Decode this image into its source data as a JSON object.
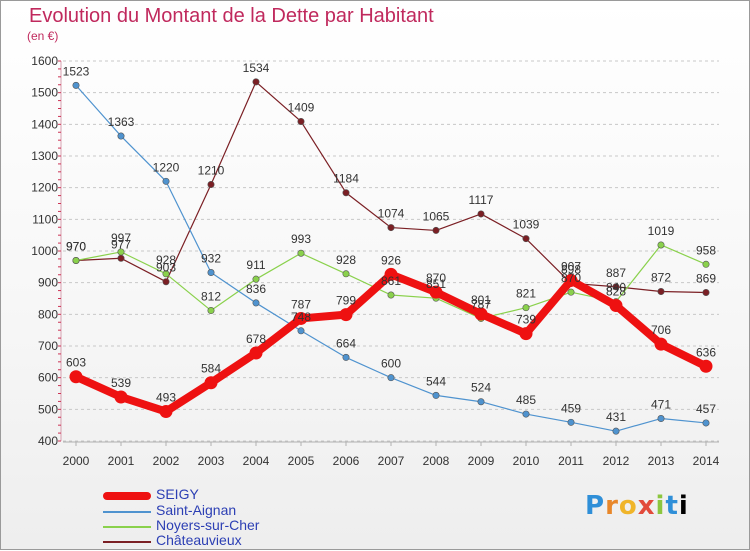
{
  "chart_data": {
    "type": "line",
    "title": "Evolution du Montant de la Dette par Habitant",
    "subtitle": "(en €)",
    "x": [
      "2000",
      "2001",
      "2002",
      "2003",
      "2004",
      "2005",
      "2006",
      "2007",
      "2008",
      "2009",
      "2010",
      "2011",
      "2012",
      "2013",
      "2014"
    ],
    "ylim": [
      400,
      1600
    ],
    "yticks": [
      400,
      500,
      600,
      700,
      800,
      900,
      1000,
      1100,
      1200,
      1300,
      1400,
      1500,
      1600
    ],
    "grid": "horizontal-dashed",
    "legend": "bottom-left",
    "series": [
      {
        "name": "Châteauvieux",
        "color": "#7b1f24",
        "values": [
          970,
          977,
          903,
          1210,
          1534,
          1409,
          1184,
          1074,
          1065,
          1117,
          1039,
          898,
          887,
          872,
          869
        ]
      },
      {
        "name": "Noyers-sur-Cher",
        "color": "#8ad14c",
        "values": [
          970,
          997,
          928,
          812,
          911,
          993,
          928,
          861,
          851,
          787,
          821,
          870,
          840,
          1019,
          958
        ]
      },
      {
        "name": "Saint-Aignan",
        "color": "#4f93cf",
        "values": [
          1523,
          1363,
          1220,
          932,
          836,
          748,
          664,
          600,
          544,
          524,
          485,
          459,
          431,
          471,
          457
        ]
      },
      {
        "name": "SEIGY",
        "color": "#ee1111",
        "values": [
          603,
          539,
          493,
          584,
          678,
          787,
          799,
          926,
          870,
          801,
          739,
          907,
          828,
          706,
          636
        ]
      }
    ],
    "data_labels": {
      "Châteauvieux": [
        "970",
        "977",
        "903",
        "1210",
        "1534",
        "1409",
        "1184",
        "1074",
        "1065",
        "1117",
        "1039",
        "898",
        "887",
        "872",
        "869"
      ],
      "Noyers-sur-Cher": [
        "970",
        "997",
        "928",
        "812",
        "911",
        "993",
        "928",
        "861",
        "851",
        "787",
        "821",
        "870",
        "840",
        "1019",
        "958"
      ],
      "Saint-Aignan": [
        "1523",
        "1363",
        "1220",
        "932",
        "836",
        "748",
        "664",
        "600",
        "544",
        "524",
        "485",
        "459",
        "431",
        "471",
        "457"
      ],
      "SEIGY": [
        "603",
        "539",
        "493",
        "584",
        "678",
        "787",
        "799",
        "926",
        "870",
        "801",
        "739",
        "907",
        "828",
        "706",
        "636"
      ]
    }
  },
  "legend_items": [
    {
      "label": "SEIGY",
      "color": "#ee1111"
    },
    {
      "label": "Saint-Aignan",
      "color": "#4f93cf"
    },
    {
      "label": "Noyers-sur-Cher",
      "color": "#8ad14c"
    },
    {
      "label": "Châteauvieux",
      "color": "#7b1f24"
    }
  ],
  "logo": {
    "letters": [
      "P",
      "r",
      "o",
      "x",
      "i",
      "t",
      "i"
    ]
  }
}
